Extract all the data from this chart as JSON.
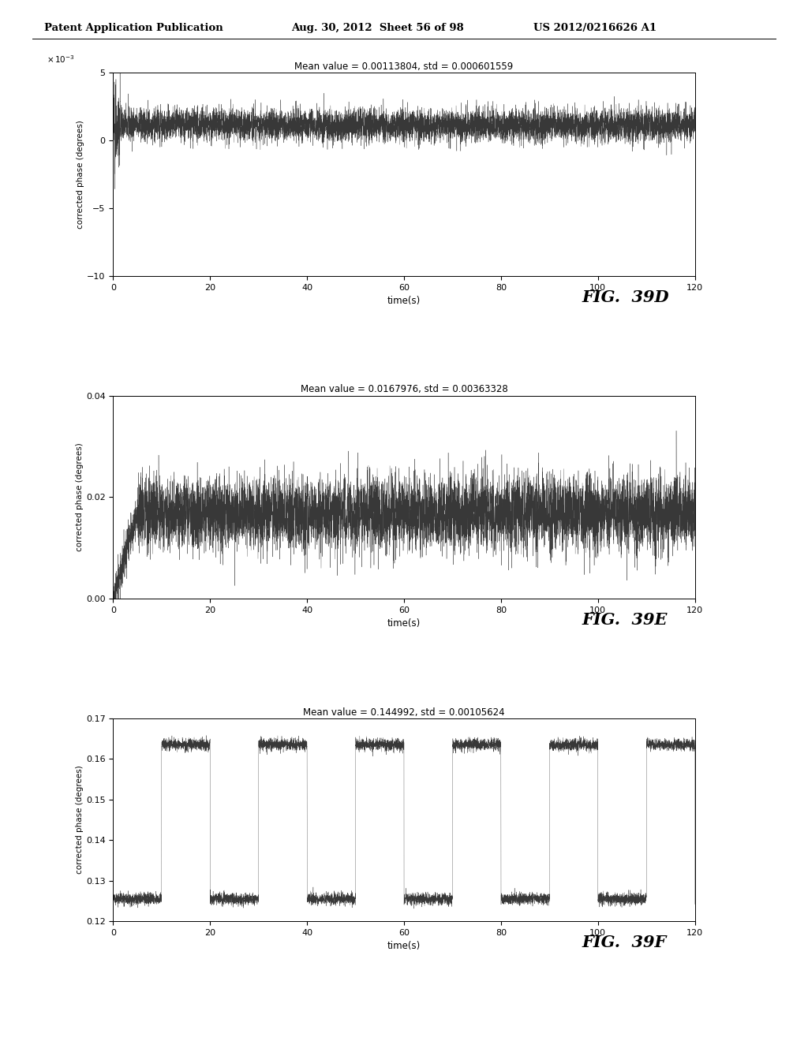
{
  "header_left": "Patent Application Publication",
  "header_mid": "Aug. 30, 2012  Sheet 56 of 98",
  "header_right": "US 2012/0216626 A1",
  "fig_labels": [
    "FIG.  39D",
    "FIG.  39E",
    "FIG.  39F"
  ],
  "titles": [
    "Mean value = 0.00113804, std = 0.000601559",
    "Mean value = 0.0167976, std = 0.00363328",
    "Mean value = 0.144992, std = 0.00105624"
  ],
  "xlim": [
    0,
    120
  ],
  "xticks": [
    0,
    20,
    40,
    60,
    80,
    100,
    120
  ],
  "xlabel": "time(s)",
  "ylabel": "corrected phase (degrees)",
  "plot_D": {
    "mean_scaled": 1.13804,
    "std_scaled": 0.601559,
    "ylim_scaled": [
      -10,
      5
    ],
    "yticks_scaled": [
      -10,
      -5,
      0,
      5
    ]
  },
  "plot_E": {
    "mean": 0.0167976,
    "std": 0.00363328,
    "ylim": [
      0,
      0.04
    ],
    "yticks": [
      0,
      0.02,
      0.04
    ]
  },
  "plot_F": {
    "mean": 0.144992,
    "std": 0.00105624,
    "ylim": [
      0.12,
      0.17
    ],
    "yticks": [
      0.12,
      0.13,
      0.14,
      0.15,
      0.16,
      0.17
    ],
    "low_level": 0.1255,
    "high_level": 0.1635
  },
  "bg_color": "#ffffff",
  "line_color": "#222222"
}
